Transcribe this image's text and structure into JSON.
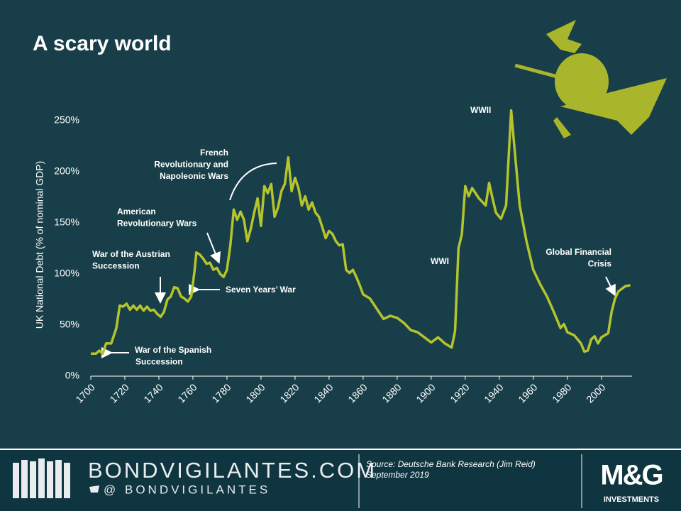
{
  "chart_data": {
    "type": "line",
    "title": "A scary world",
    "y_label": "UK National Debt (% of nominal GDP)",
    "xlim": [
      1700,
      2018
    ],
    "xticks": [
      1700,
      1720,
      1740,
      1760,
      1780,
      1800,
      1820,
      1840,
      1860,
      1880,
      1900,
      1920,
      1940,
      1960,
      1980,
      2000
    ],
    "ylim": [
      0,
      250
    ],
    "yticks": [
      {
        "value": 0,
        "label": "0%"
      },
      {
        "value": 50,
        "label": "50%"
      },
      {
        "value": 100,
        "label": "100%"
      },
      {
        "value": 150,
        "label": "150%"
      },
      {
        "value": 200,
        "label": "200%"
      },
      {
        "value": 250,
        "label": "250%"
      }
    ],
    "grid": false,
    "series": [
      {
        "name": "UK National Debt",
        "color": "#b5c42c",
        "x": [
          1700,
          1703,
          1705,
          1707,
          1709,
          1712,
          1715,
          1717,
          1719,
          1721,
          1723,
          1725,
          1727,
          1729,
          1731,
          1733,
          1735,
          1737,
          1739,
          1741,
          1743,
          1745,
          1747,
          1749,
          1751,
          1753,
          1755,
          1757,
          1759,
          1761,
          1762,
          1764,
          1766,
          1768,
          1770,
          1772,
          1774,
          1776,
          1778,
          1780,
          1782,
          1784,
          1786,
          1788,
          1790,
          1792,
          1794,
          1796,
          1798,
          1800,
          1802,
          1804,
          1806,
          1808,
          1810,
          1812,
          1814,
          1816,
          1818,
          1820,
          1822,
          1824,
          1826,
          1828,
          1830,
          1832,
          1834,
          1836,
          1838,
          1840,
          1842,
          1844,
          1846,
          1848,
          1850,
          1852,
          1854,
          1856,
          1858,
          1860,
          1864,
          1868,
          1872,
          1876,
          1880,
          1884,
          1888,
          1892,
          1896,
          1900,
          1904,
          1908,
          1912,
          1914,
          1916,
          1918,
          1920,
          1922,
          1924,
          1928,
          1932,
          1934,
          1936,
          1938,
          1941,
          1944,
          1946,
          1947,
          1949,
          1952,
          1956,
          1960,
          1964,
          1968,
          1972,
          1976,
          1978,
          1980,
          1984,
          1988,
          1990,
          1992,
          1994,
          1996,
          1998,
          2000,
          2002,
          2004,
          2006,
          2008,
          2010,
          2014,
          2017
        ],
        "values": [
          22,
          22,
          25,
          22,
          32,
          32,
          47,
          69,
          68,
          71,
          65,
          69,
          65,
          69,
          64,
          68,
          64,
          65,
          61,
          58,
          63,
          75,
          78,
          87,
          86,
          78,
          76,
          73,
          78,
          104,
          121,
          119,
          115,
          110,
          111,
          104,
          106,
          100,
          97,
          104,
          128,
          163,
          153,
          161,
          153,
          132,
          144,
          160,
          174,
          147,
          186,
          179,
          188,
          156,
          165,
          181,
          188,
          214,
          181,
          194,
          184,
          167,
          176,
          163,
          170,
          160,
          156,
          146,
          135,
          142,
          139,
          132,
          128,
          129,
          104,
          101,
          104,
          97,
          89,
          80,
          76,
          66,
          56,
          59,
          57,
          52,
          45,
          43,
          38,
          33,
          38,
          32,
          28,
          44,
          125,
          139,
          186,
          176,
          184,
          174,
          167,
          189,
          174,
          160,
          154,
          167,
          229,
          260,
          222,
          167,
          132,
          104,
          90,
          78,
          63,
          47,
          51,
          43,
          40,
          32,
          24,
          25,
          36,
          39,
          32,
          38,
          40,
          42,
          63,
          76,
          83,
          88,
          89
        ]
      }
    ],
    "annotations": [
      {
        "lines": [
          "War of the Spanish",
          "Succession"
        ]
      },
      {
        "lines": [
          "War of the Austrian",
          "Succession"
        ]
      },
      {
        "lines": [
          "American",
          "Revolutionary Wars"
        ]
      },
      {
        "lines": [
          "French",
          "Revolutionary and",
          "Napoleonic Wars"
        ]
      },
      {
        "lines": [
          "Seven Years’ War"
        ]
      },
      {
        "lines": [
          "WWI"
        ]
      },
      {
        "lines": [
          "WWII"
        ]
      },
      {
        "lines": [
          "Global Financial",
          "Crisis"
        ]
      }
    ]
  },
  "footer": {
    "site": "BONDVIGILANTES.COM",
    "handle": "@ BONDVIGILANTES",
    "source": [
      "Source: Deutsche Bank Research (Jim Reid)",
      "September 2019"
    ],
    "brand": "M&G",
    "brand_sub": "INVESTMENTS"
  }
}
